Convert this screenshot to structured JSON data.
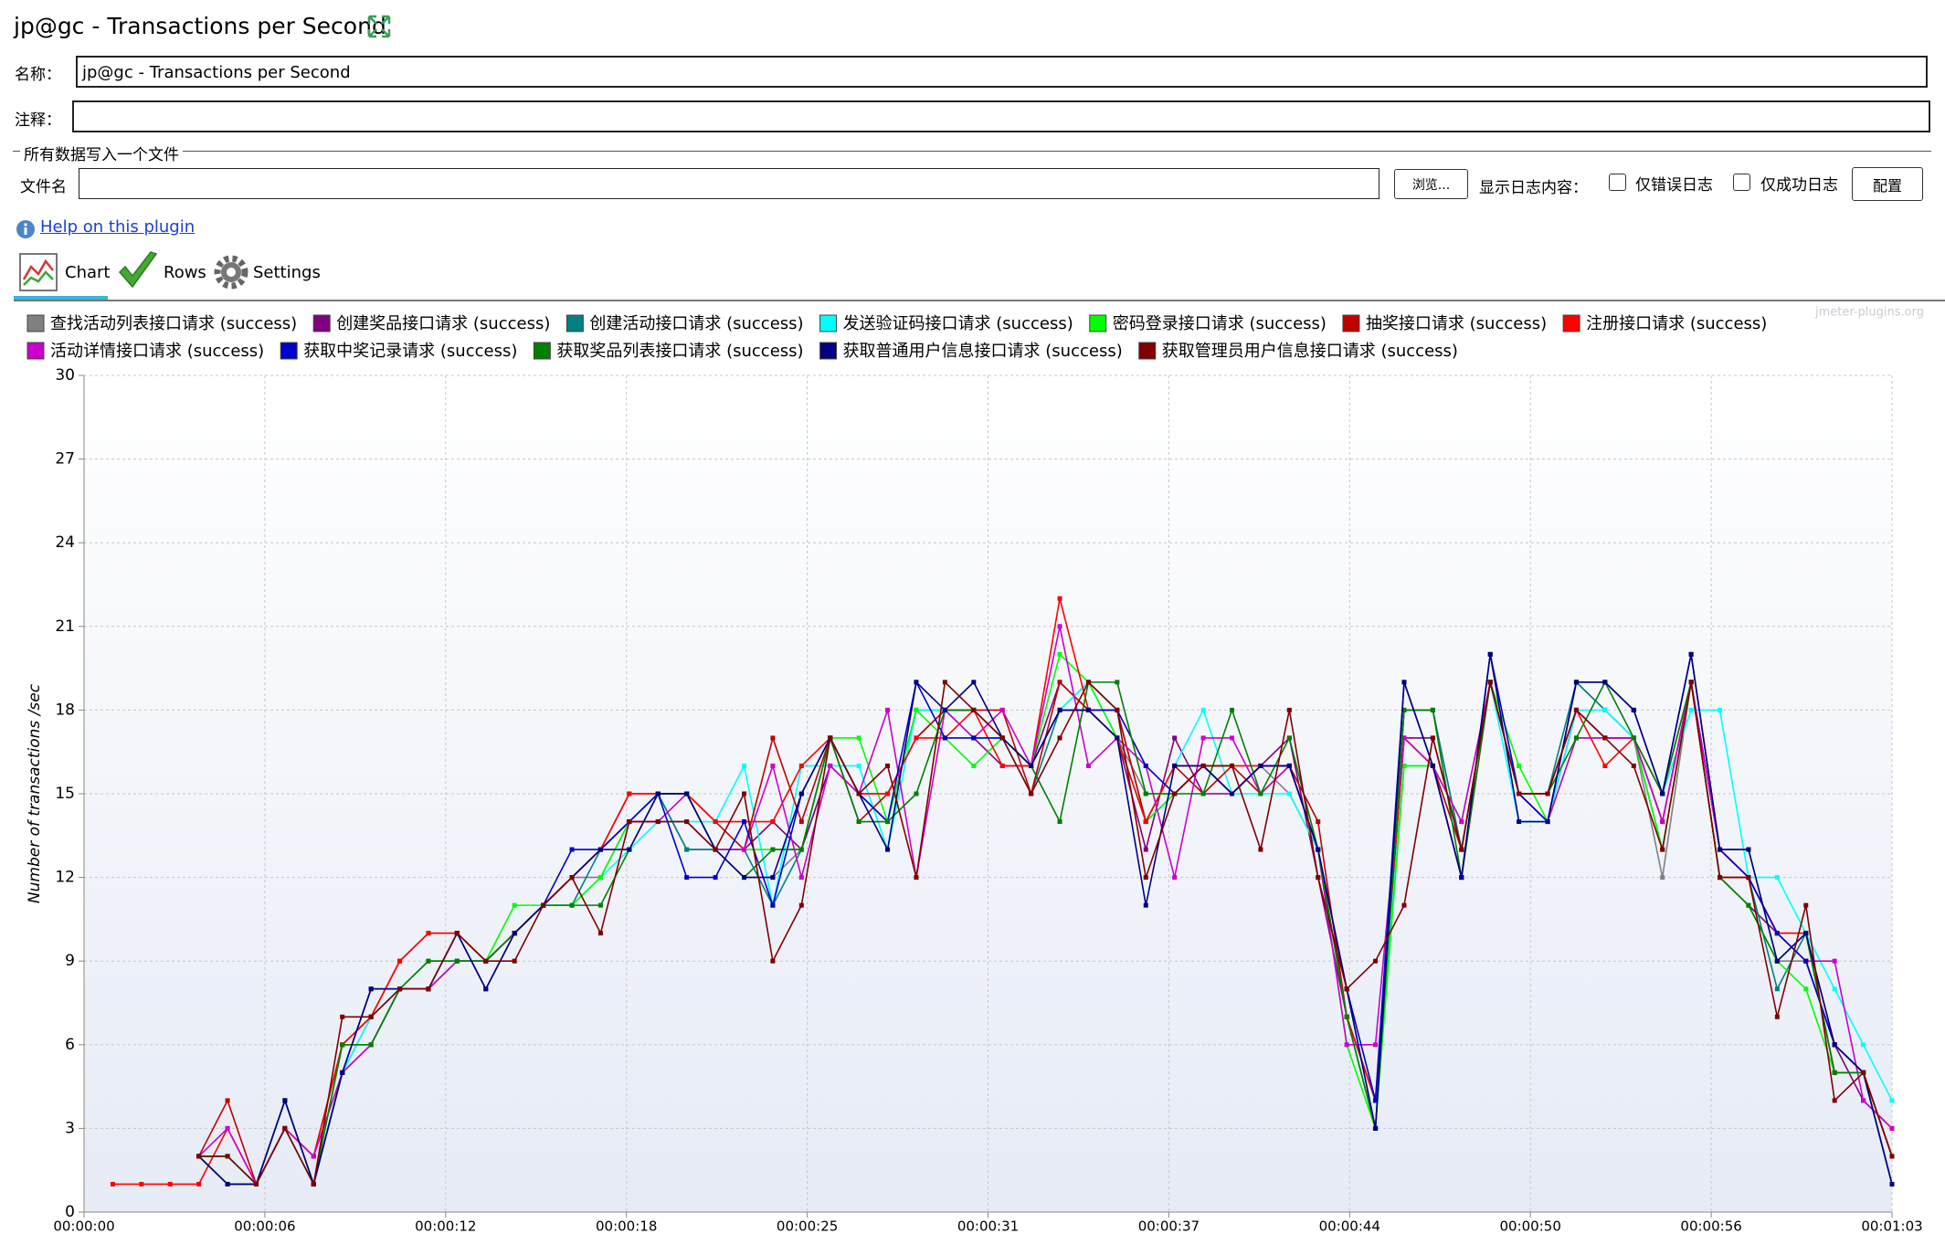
{
  "window_title": "jp@gc - Transactions per Second",
  "form": {
    "name_label": "名称：",
    "name_value": "jp@gc - Transactions per Second",
    "comment_label": "注释：",
    "file_section": "所有数据写入一个文件",
    "file_label": "文件名",
    "browse_button": "浏览...",
    "log_label": "显示日志内容：",
    "errors_only": "仅错误日志",
    "success_only": "仅成功日志",
    "configure_button": "配置"
  },
  "help_link": "Help on this plugin",
  "tabs": [
    "Chart",
    "Rows",
    "Settings"
  ],
  "watermark": "jmeter-plugins.org",
  "chart_data": {
    "type": "line",
    "y_label": "Number of transactions /sec",
    "x": [
      1,
      2,
      3,
      4,
      5,
      6,
      7,
      8,
      9,
      10,
      11,
      12,
      13,
      14,
      15,
      16,
      17,
      18,
      19,
      20,
      21,
      22,
      23,
      24,
      25,
      26,
      27,
      28,
      29,
      30,
      31,
      32,
      33,
      34,
      35,
      36,
      37,
      38,
      39,
      40,
      41,
      42,
      43,
      44,
      45,
      46,
      47,
      48,
      49,
      50,
      51,
      52,
      53,
      54,
      55,
      56,
      57,
      58,
      59,
      60,
      61,
      62,
      63
    ],
    "xlim": [
      0,
      63
    ],
    "xticks": [
      {
        "value": 0,
        "label": "00:00:00"
      },
      {
        "value": 6.3,
        "label": "00:00:06"
      },
      {
        "value": 12.6,
        "label": "00:00:12"
      },
      {
        "value": 18.9,
        "label": "00:00:18"
      },
      {
        "value": 25.2,
        "label": "00:00:25"
      },
      {
        "value": 31.5,
        "label": "00:00:31"
      },
      {
        "value": 37.8,
        "label": "00:00:37"
      },
      {
        "value": 44.1,
        "label": "00:00:44"
      },
      {
        "value": 50.4,
        "label": "00:00:50"
      },
      {
        "value": 56.7,
        "label": "00:00:56"
      },
      {
        "value": 63,
        "label": "00:01:03"
      }
    ],
    "ylim": [
      0,
      30
    ],
    "yticks": [
      0,
      3,
      6,
      9,
      12,
      15,
      18,
      21,
      24,
      27,
      30
    ],
    "grid": true,
    "series": [
      {
        "name": "查找活动列表接口请求 (success)",
        "color": "#808080",
        "values": [
          null,
          null,
          null,
          2,
          2,
          1,
          3,
          1,
          5,
          7,
          8,
          8,
          9,
          9,
          10,
          11,
          12,
          12,
          14,
          15,
          13,
          13,
          12,
          12,
          13,
          16,
          15,
          14,
          18,
          18,
          18,
          17,
          16,
          18,
          18,
          17,
          15,
          15,
          16,
          15,
          16,
          15,
          13,
          8,
          3,
          18,
          18,
          13,
          19,
          15,
          14,
          19,
          18,
          17,
          12,
          19,
          13,
          13,
          9,
          9,
          6,
          5,
          2
        ]
      },
      {
        "name": "创建奖品接口请求 (success)",
        "color": "#800080",
        "values": [
          null,
          null,
          null,
          2,
          2,
          1,
          3,
          1,
          5,
          6,
          8,
          8,
          9,
          9,
          10,
          11,
          12,
          13,
          14,
          14,
          14,
          13,
          13,
          14,
          13,
          16,
          15,
          15,
          17,
          18,
          17,
          16,
          16,
          19,
          18,
          17,
          13,
          17,
          15,
          15,
          16,
          17,
          12,
          7,
          4,
          17,
          17,
          13,
          19,
          15,
          14,
          18,
          17,
          17,
          14,
          19,
          12,
          11,
          10,
          9,
          6,
          4,
          3
        ]
      },
      {
        "name": "创建活动接口请求 (success)",
        "color": "#008080",
        "values": [
          null,
          null,
          null,
          2,
          2,
          1,
          3,
          1,
          6,
          7,
          8,
          9,
          9,
          9,
          10,
          11,
          11,
          13,
          14,
          15,
          13,
          13,
          13,
          11,
          13,
          17,
          15,
          14,
          18,
          18,
          18,
          17,
          15,
          18,
          19,
          18,
          14,
          15,
          16,
          15,
          16,
          16,
          13,
          7,
          3,
          18,
          18,
          13,
          19,
          15,
          15,
          19,
          18,
          17,
          13,
          19,
          13,
          12,
          8,
          10,
          5,
          5,
          2
        ]
      },
      {
        "name": "发送验证码接口请求 (success)",
        "color": "#00ffff",
        "values": [
          null,
          null,
          null,
          2,
          2,
          1,
          3,
          1,
          5,
          7,
          8,
          8,
          9,
          9,
          10,
          11,
          11,
          12,
          13,
          14,
          14,
          14,
          16,
          11,
          16,
          16,
          16,
          13,
          18,
          18,
          17,
          17,
          16,
          18,
          19,
          17,
          14,
          16,
          18,
          15,
          15,
          15,
          13,
          7,
          4,
          16,
          16,
          13,
          19,
          14,
          14,
          18,
          18,
          17,
          15,
          18,
          18,
          12,
          12,
          10,
          8,
          6,
          4
        ]
      },
      {
        "name": "密码登录接口请求 (success)",
        "color": "#00ff00",
        "values": [
          null,
          null,
          null,
          2,
          2,
          1,
          3,
          1,
          6,
          6,
          8,
          9,
          9,
          9,
          11,
          11,
          11,
          12,
          14,
          15,
          15,
          13,
          13,
          13,
          13,
          17,
          17,
          14,
          18,
          17,
          16,
          17,
          16,
          20,
          19,
          17,
          14,
          15,
          16,
          16,
          15,
          16,
          13,
          6,
          3,
          16,
          16,
          14,
          19,
          16,
          14,
          17,
          17,
          17,
          13,
          19,
          12,
          11,
          9,
          8,
          5,
          5,
          2
        ]
      },
      {
        "name": "抽奖接口请求 (success)",
        "color": "#c00000",
        "values": [
          null,
          null,
          null,
          2,
          4,
          1,
          3,
          2,
          6,
          7,
          9,
          10,
          10,
          9,
          10,
          11,
          12,
          13,
          15,
          15,
          15,
          14,
          13,
          17,
          14,
          17,
          14,
          15,
          17,
          18,
          18,
          18,
          15,
          19,
          18,
          18,
          14,
          16,
          15,
          16,
          15,
          16,
          14,
          7,
          4,
          17,
          16,
          13,
          19,
          15,
          15,
          18,
          17,
          17,
          14,
          19,
          12,
          12,
          10,
          10,
          5,
          5,
          2
        ]
      },
      {
        "name": "注册接口请求 (success)",
        "color": "#ff0000",
        "values": [
          1,
          1,
          1,
          1,
          3,
          1,
          3,
          2,
          6,
          7,
          9,
          10,
          10,
          9,
          10,
          11,
          12,
          13,
          15,
          15,
          15,
          14,
          14,
          14,
          16,
          17,
          15,
          15,
          17,
          17,
          18,
          16,
          16,
          22,
          18,
          17,
          14,
          16,
          16,
          16,
          16,
          16,
          13,
          7,
          4,
          17,
          16,
          12,
          19,
          15,
          15,
          18,
          16,
          17,
          15,
          19,
          13,
          12,
          10,
          10,
          6,
          5,
          2
        ]
      },
      {
        "name": "活动详情接口请求 (success)",
        "color": "#cc00cc",
        "values": [
          null,
          null,
          null,
          2,
          3,
          1,
          3,
          2,
          5,
          6,
          8,
          8,
          9,
          9,
          10,
          11,
          12,
          13,
          14,
          14,
          15,
          13,
          13,
          16,
          12,
          16,
          15,
          18,
          12,
          18,
          17,
          18,
          16,
          21,
          16,
          17,
          16,
          12,
          17,
          17,
          15,
          16,
          13,
          6,
          6,
          17,
          16,
          14,
          19,
          15,
          14,
          17,
          17,
          17,
          14,
          19,
          13,
          12,
          10,
          9,
          9,
          4,
          3
        ]
      },
      {
        "name": "获取中奖记录请求 (success)",
        "color": "#0000cc",
        "values": [
          null,
          null,
          null,
          2,
          1,
          1,
          4,
          1,
          5,
          8,
          8,
          8,
          10,
          8,
          10,
          11,
          13,
          13,
          14,
          15,
          12,
          12,
          14,
          11,
          15,
          17,
          15,
          14,
          19,
          17,
          17,
          17,
          16,
          18,
          18,
          18,
          16,
          15,
          16,
          15,
          16,
          16,
          13,
          8,
          4,
          19,
          16,
          12,
          20,
          15,
          14,
          19,
          19,
          18,
          15,
          20,
          13,
          12,
          10,
          9,
          6,
          5,
          1
        ]
      },
      {
        "name": "获取奖品列表接口请求 (success)",
        "color": "#008000",
        "values": [
          null,
          null,
          null,
          2,
          1,
          1,
          4,
          1,
          6,
          6,
          8,
          9,
          9,
          9,
          10,
          11,
          11,
          11,
          13,
          15,
          15,
          13,
          12,
          13,
          13,
          17,
          14,
          14,
          15,
          18,
          18,
          17,
          16,
          14,
          19,
          19,
          15,
          15,
          15,
          18,
          15,
          17,
          13,
          7,
          3,
          18,
          18,
          12,
          19,
          15,
          15,
          17,
          19,
          17,
          15,
          19,
          12,
          11,
          9,
          10,
          5,
          5,
          1
        ]
      },
      {
        "name": "获取普通用户信息接口请求 (success)",
        "color": "#000080",
        "values": [
          null,
          null,
          null,
          2,
          1,
          1,
          4,
          1,
          5,
          8,
          8,
          8,
          10,
          8,
          10,
          11,
          12,
          13,
          13,
          15,
          15,
          13,
          12,
          12,
          15,
          17,
          15,
          13,
          19,
          18,
          19,
          17,
          16,
          18,
          18,
          17,
          11,
          16,
          16,
          15,
          16,
          16,
          13,
          8,
          3,
          19,
          16,
          12,
          20,
          14,
          14,
          19,
          19,
          18,
          15,
          20,
          13,
          13,
          9,
          10,
          6,
          5,
          1
        ]
      },
      {
        "name": "获取管理员用户信息接口请求 (success)",
        "color": "#800000",
        "values": [
          null,
          null,
          null,
          2,
          2,
          1,
          3,
          1,
          7,
          7,
          8,
          8,
          10,
          9,
          9,
          11,
          12,
          10,
          14,
          14,
          14,
          13,
          15,
          9,
          11,
          17,
          15,
          16,
          12,
          19,
          18,
          17,
          15,
          17,
          19,
          18,
          12,
          15,
          16,
          16,
          13,
          18,
          12,
          8,
          9,
          11,
          17,
          13,
          19,
          15,
          15,
          18,
          17,
          16,
          13,
          19,
          12,
          12,
          7,
          11,
          4,
          5,
          2
        ]
      }
    ]
  }
}
